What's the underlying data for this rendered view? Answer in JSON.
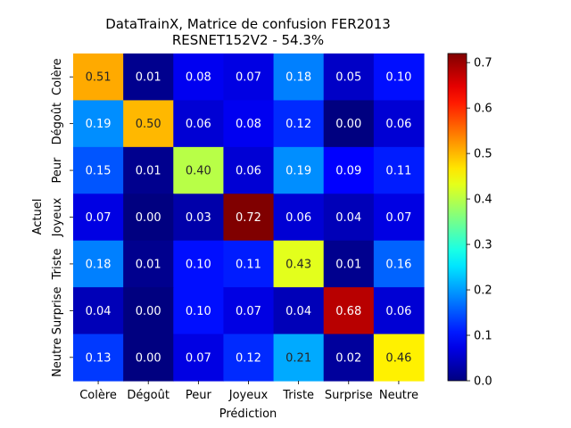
{
  "chart_data": {
    "type": "heatmap",
    "title_line1": "DataTrainX, Matrice de confusion FER2013",
    "title_line2": "RESNET152V2 - 54.3%",
    "xlabel": "Prédiction",
    "ylabel": "Actuel",
    "x_categories": [
      "Colère",
      "Dégoût",
      "Peur",
      "Joyeux",
      "Triste",
      "Surprise",
      "Neutre"
    ],
    "y_categories": [
      "Colère",
      "Dégoût",
      "Peur",
      "Joyeux",
      "Triste",
      "Surprise",
      "Neutre"
    ],
    "values": [
      [
        0.51,
        0.01,
        0.08,
        0.07,
        0.18,
        0.05,
        0.1
      ],
      [
        0.19,
        0.5,
        0.06,
        0.08,
        0.12,
        0.0,
        0.06
      ],
      [
        0.15,
        0.01,
        0.4,
        0.06,
        0.19,
        0.09,
        0.11
      ],
      [
        0.07,
        0.0,
        0.03,
        0.72,
        0.06,
        0.04,
        0.07
      ],
      [
        0.18,
        0.01,
        0.1,
        0.11,
        0.43,
        0.01,
        0.16
      ],
      [
        0.04,
        0.0,
        0.1,
        0.07,
        0.04,
        0.68,
        0.06
      ],
      [
        0.13,
        0.0,
        0.07,
        0.12,
        0.21,
        0.02,
        0.46
      ]
    ],
    "colormap": "jet",
    "vmin": 0.0,
    "vmax": 0.72,
    "colorbar_ticks": [
      "0.0",
      "0.1",
      "0.2",
      "0.3",
      "0.4",
      "0.5",
      "0.6",
      "0.7"
    ]
  }
}
